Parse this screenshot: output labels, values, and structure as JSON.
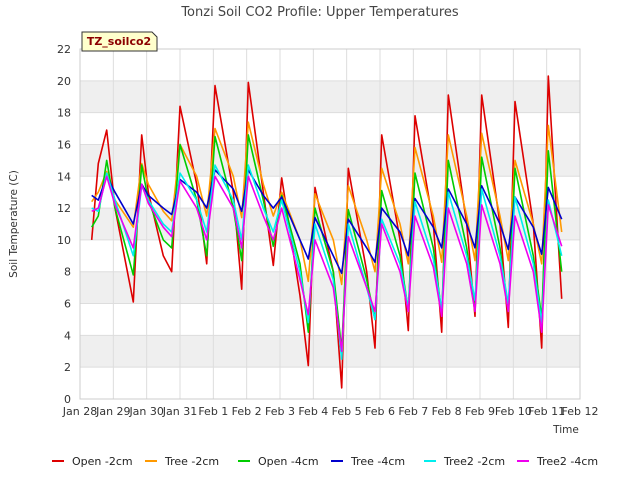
{
  "chart_data": {
    "type": "line",
    "title": "Tonzi Soil CO2 Profile: Upper Temperatures",
    "xlabel": "Time",
    "ylabel": "Soil Temperature (C)",
    "site_label": "TZ_soilco2",
    "ylim": [
      0,
      22
    ],
    "yticks": [
      0,
      2,
      4,
      6,
      8,
      10,
      12,
      14,
      16,
      18,
      20,
      22
    ],
    "xlim": [
      0,
      15
    ],
    "x_unit": "days since Jan 28",
    "xticks": [
      {
        "x": 0,
        "label": "Jan 28"
      },
      {
        "x": 1,
        "label": "Jan 29"
      },
      {
        "x": 2,
        "label": "Jan 30"
      },
      {
        "x": 3,
        "label": "Jan 31"
      },
      {
        "x": 4,
        "label": "Feb 1"
      },
      {
        "x": 5,
        "label": "Feb 2"
      },
      {
        "x": 6,
        "label": "Feb 3"
      },
      {
        "x": 7,
        "label": "Feb 4"
      },
      {
        "x": 8,
        "label": "Feb 5"
      },
      {
        "x": 9,
        "label": "Feb 6"
      },
      {
        "x": 10,
        "label": "Feb 7"
      },
      {
        "x": 11,
        "label": "Feb 8"
      },
      {
        "x": 12,
        "label": "Feb 9"
      },
      {
        "x": 13,
        "label": "Feb 10"
      },
      {
        "x": 14,
        "label": "Feb 11"
      },
      {
        "x": 15,
        "label": "Feb 12"
      }
    ],
    "grid": true,
    "legend_position": "bottom",
    "series": [
      {
        "name": "Open -2cm",
        "color": "#dd0000",
        "x": [
          0.35,
          0.55,
          0.8,
          1.05,
          1.6,
          1.85,
          2.05,
          2.5,
          2.75,
          3.0,
          3.5,
          3.8,
          4.05,
          4.6,
          4.85,
          5.05,
          5.5,
          5.8,
          6.05,
          6.6,
          6.85,
          7.05,
          7.6,
          7.85,
          8.05,
          8.6,
          8.85,
          9.05,
          9.6,
          9.85,
          10.05,
          10.6,
          10.85,
          11.05,
          11.6,
          11.85,
          12.05,
          12.6,
          12.85,
          13.05,
          13.6,
          13.85,
          14.05,
          14.45
        ],
        "y": [
          10.0,
          14.8,
          16.9,
          12.0,
          6.1,
          16.6,
          13.0,
          9.0,
          8.0,
          18.4,
          13.5,
          8.5,
          19.7,
          13.0,
          6.9,
          19.9,
          13.0,
          8.4,
          13.9,
          6.5,
          2.1,
          13.3,
          8.0,
          0.7,
          14.5,
          8.0,
          3.2,
          16.6,
          10.0,
          4.3,
          17.8,
          11.0,
          4.2,
          19.1,
          11.0,
          5.2,
          19.1,
          11.0,
          4.5,
          18.7,
          11.0,
          3.2,
          20.3,
          6.3
        ]
      },
      {
        "name": "Tree -2cm",
        "color": "#ff9900",
        "x": [
          0.35,
          0.55,
          0.8,
          1.05,
          1.6,
          1.85,
          2.05,
          2.5,
          2.75,
          3.0,
          3.5,
          3.8,
          4.05,
          4.6,
          4.85,
          5.05,
          5.5,
          5.8,
          6.05,
          6.6,
          6.85,
          7.05,
          7.6,
          7.85,
          8.05,
          8.6,
          8.85,
          9.05,
          9.6,
          9.85,
          10.05,
          10.6,
          10.85,
          11.05,
          11.6,
          11.85,
          12.05,
          12.6,
          12.85,
          13.05,
          13.6,
          13.85,
          14.05,
          14.45
        ],
        "y": [
          12.4,
          13.0,
          14.3,
          12.5,
          10.8,
          14.8,
          13.5,
          11.8,
          11.2,
          16.0,
          14.0,
          11.5,
          17.0,
          14.0,
          11.4,
          17.4,
          13.5,
          11.5,
          13.0,
          10.0,
          7.4,
          12.9,
          10.0,
          7.2,
          13.4,
          10.0,
          8.0,
          14.5,
          11.0,
          8.5,
          15.8,
          11.5,
          8.6,
          16.6,
          11.5,
          8.7,
          16.7,
          11.5,
          8.7,
          15.0,
          11.0,
          8.5,
          17.2,
          10.5
        ]
      },
      {
        "name": "Open -4cm",
        "color": "#00cc00",
        "x": [
          0.35,
          0.55,
          0.8,
          1.05,
          1.6,
          1.85,
          2.05,
          2.5,
          2.75,
          3.0,
          3.5,
          3.8,
          4.05,
          4.6,
          4.85,
          5.05,
          5.5,
          5.8,
          6.05,
          6.6,
          6.85,
          7.05,
          7.6,
          7.85,
          8.05,
          8.6,
          8.85,
          9.05,
          9.6,
          9.85,
          10.05,
          10.6,
          10.85,
          11.05,
          11.6,
          11.85,
          12.05,
          12.6,
          12.85,
          13.05,
          13.6,
          13.85,
          14.05,
          14.45
        ],
        "y": [
          10.8,
          11.5,
          15.0,
          12.0,
          7.8,
          14.7,
          12.5,
          10.0,
          9.5,
          16.0,
          12.5,
          9.0,
          16.5,
          12.0,
          8.7,
          16.6,
          12.5,
          9.6,
          12.8,
          8.5,
          4.2,
          12.0,
          8.0,
          3.1,
          11.9,
          7.5,
          5.0,
          13.1,
          9.0,
          5.6,
          14.2,
          9.5,
          5.4,
          15.0,
          9.5,
          5.6,
          15.2,
          9.5,
          5.5,
          14.5,
          9.0,
          5.1,
          15.6,
          8.0
        ]
      },
      {
        "name": "Tree -4cm",
        "color": "#0000cc",
        "x": [
          0.35,
          0.55,
          0.8,
          1.05,
          1.6,
          1.85,
          2.05,
          2.5,
          2.75,
          3.0,
          3.5,
          3.8,
          4.05,
          4.6,
          4.85,
          5.05,
          5.5,
          5.8,
          6.05,
          6.6,
          6.85,
          7.05,
          7.6,
          7.85,
          8.05,
          8.6,
          8.85,
          9.05,
          9.6,
          9.85,
          10.05,
          10.6,
          10.85,
          11.05,
          11.6,
          11.85,
          12.05,
          12.6,
          12.85,
          13.05,
          13.6,
          13.85,
          14.05,
          14.45
        ],
        "y": [
          12.8,
          12.5,
          14.0,
          13.0,
          11.0,
          13.5,
          12.8,
          12.0,
          11.6,
          13.8,
          13.0,
          12.0,
          14.4,
          13.2,
          11.8,
          14.4,
          12.8,
          12.0,
          12.7,
          10.0,
          8.8,
          11.4,
          9.0,
          7.9,
          11.3,
          9.5,
          8.6,
          12.0,
          10.5,
          9.0,
          12.6,
          10.8,
          9.5,
          13.2,
          11.0,
          9.5,
          13.4,
          11.0,
          9.4,
          12.7,
          10.8,
          9.1,
          13.3,
          11.3
        ]
      },
      {
        "name": "Tree2 -2cm",
        "color": "#00eeee",
        "x": [
          0.35,
          0.55,
          0.8,
          1.05,
          1.6,
          1.85,
          2.05,
          2.5,
          2.75,
          3.0,
          3.5,
          3.8,
          4.05,
          4.6,
          4.85,
          5.05,
          5.5,
          5.8,
          6.05,
          6.6,
          6.85,
          7.05,
          7.6,
          7.85,
          8.05,
          8.6,
          8.85,
          9.05,
          9.6,
          9.85,
          10.05,
          10.6,
          10.85,
          11.05,
          11.6,
          11.85,
          12.05,
          12.6,
          12.85,
          13.05,
          13.6,
          13.85,
          14.05,
          14.45
        ],
        "y": [
          12.0,
          11.8,
          14.2,
          12.5,
          9.0,
          13.4,
          12.5,
          11.0,
          10.5,
          14.2,
          12.5,
          10.5,
          14.7,
          12.5,
          10.0,
          14.7,
          12.0,
          10.5,
          12.5,
          8.0,
          4.8,
          11.0,
          7.5,
          2.5,
          11.0,
          7.0,
          5.0,
          11.3,
          8.5,
          5.7,
          12.4,
          8.8,
          5.6,
          13.0,
          9.0,
          6.2,
          13.2,
          9.0,
          6.0,
          12.7,
          8.5,
          4.8,
          12.5,
          9.0
        ]
      },
      {
        "name": "Tree2 -4cm",
        "color": "#ee00ee",
        "x": [
          0.35,
          0.55,
          0.8,
          1.05,
          1.6,
          1.85,
          2.05,
          2.5,
          2.75,
          3.0,
          3.5,
          3.8,
          4.05,
          4.6,
          4.85,
          5.05,
          5.5,
          5.8,
          6.05,
          6.6,
          6.85,
          7.05,
          7.6,
          7.85,
          8.05,
          8.6,
          8.85,
          9.05,
          9.6,
          9.85,
          10.05,
          10.6,
          10.85,
          11.05,
          11.6,
          11.85,
          12.05,
          12.6,
          12.85,
          13.05,
          13.6,
          13.85,
          14.05,
          14.45
        ],
        "y": [
          11.8,
          12.0,
          14.0,
          12.2,
          9.5,
          13.5,
          12.3,
          10.8,
          10.2,
          13.7,
          12.0,
          10.0,
          14.0,
          12.0,
          9.5,
          14.0,
          11.5,
          10.0,
          12.0,
          7.5,
          5.3,
          10.0,
          7.0,
          3.0,
          10.2,
          7.0,
          5.5,
          11.0,
          8.0,
          5.5,
          11.5,
          8.3,
          5.2,
          12.0,
          8.5,
          5.5,
          12.2,
          8.5,
          5.5,
          11.5,
          8.0,
          4.2,
          12.2,
          9.6
        ]
      }
    ]
  }
}
